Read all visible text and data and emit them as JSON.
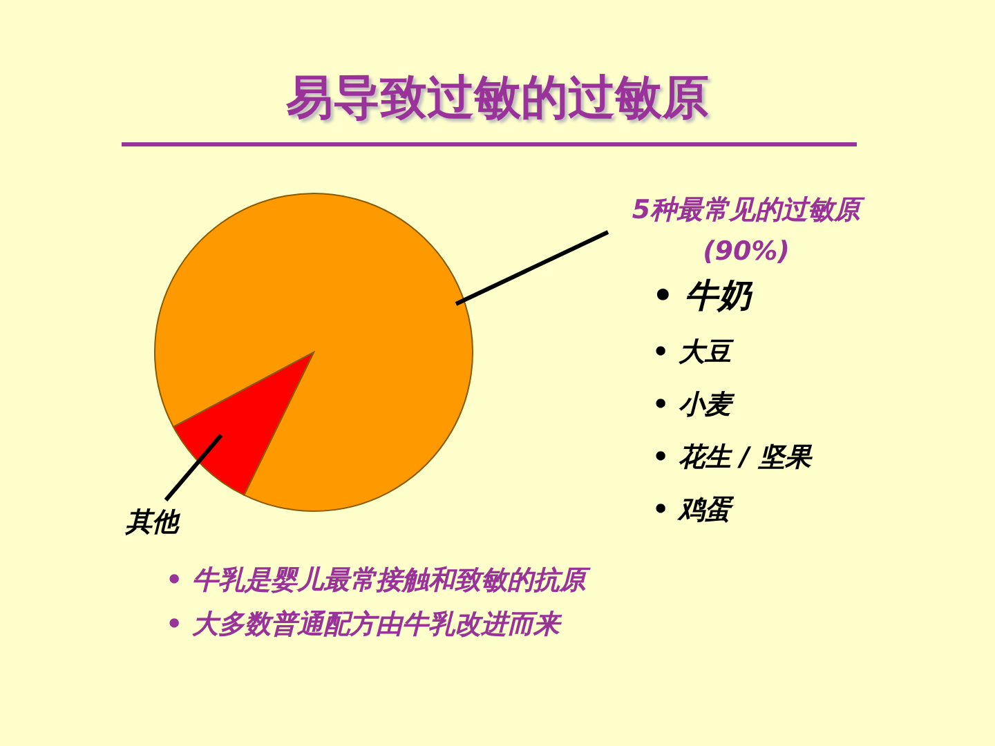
{
  "chart_data": {
    "type": "pie",
    "title": "易导致过敏的过敏原",
    "categories": [
      "5种最常见的过敏原",
      "其他"
    ],
    "values": [
      90,
      10
    ],
    "value_labels": [
      "(90%)",
      null
    ],
    "colors": [
      "#ff9900",
      "#ff0000"
    ],
    "annotations": [
      "• 牛奶",
      "• 大豆",
      "• 小麦",
      "• 花生 / 坚果",
      "• 鸡蛋",
      "• 牛乳是婴儿最常接触和致敏的抗原",
      "• 大多数普通配方由牛乳改进而来"
    ]
  }
}
